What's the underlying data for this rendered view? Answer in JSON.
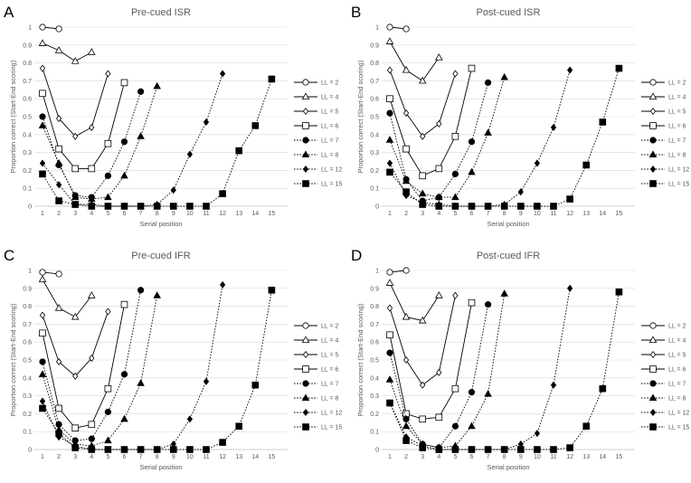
{
  "chart_data": [
    {
      "type": "line",
      "panel": "A",
      "title": "Pre-cued ISR",
      "xlabel": "Serial position",
      "ylabel": "Proportion correct (Start-End scoring)",
      "xticks": [
        "1",
        "2",
        "3",
        "4",
        "5",
        "6",
        "7",
        "8",
        "9",
        "10",
        "11",
        "12",
        "13",
        "14",
        "15"
      ],
      "yticks": [
        "0",
        "0.1",
        "0.2",
        "0.3",
        "0.4",
        "0.5",
        "0.6",
        "0.7",
        "0.8",
        "0.9",
        "1"
      ],
      "ylim": [
        0,
        1
      ],
      "series": [
        {
          "name": "LL = 2",
          "values": [
            1.0,
            0.99
          ]
        },
        {
          "name": "LL = 4",
          "values": [
            0.91,
            0.87,
            0.81,
            0.86
          ]
        },
        {
          "name": "LL = 5",
          "values": [
            0.77,
            0.49,
            0.39,
            0.44,
            0.74
          ]
        },
        {
          "name": "LL = 6",
          "values": [
            0.63,
            0.32,
            0.21,
            0.21,
            0.35,
            0.69
          ]
        },
        {
          "name": "LL = 7",
          "values": [
            0.5,
            0.23,
            0.06,
            0.05,
            0.17,
            0.36,
            0.64
          ]
        },
        {
          "name": "LL = 8",
          "values": [
            0.45,
            0.24,
            0.05,
            0.04,
            0.05,
            0.17,
            0.39,
            0.67
          ]
        },
        {
          "name": "LL = 12",
          "values": [
            0.24,
            0.12,
            0.01,
            0.01,
            0.0,
            0.0,
            0.0,
            0.01,
            0.09,
            0.29,
            0.47,
            0.74
          ]
        },
        {
          "name": "LL = 15",
          "values": [
            0.18,
            0.03,
            0.01,
            0.0,
            0.0,
            0.0,
            0.0,
            0.0,
            0.0,
            0.0,
            0.0,
            0.07,
            0.31,
            0.45,
            0.71
          ]
        }
      ]
    },
    {
      "type": "line",
      "panel": "B",
      "title": "Post-cued ISR",
      "xlabel": "Serial position",
      "ylabel": "Proportion correct (Start-End scoring)",
      "xticks": [
        "1",
        "2",
        "3",
        "4",
        "5",
        "6",
        "7",
        "8",
        "9",
        "10",
        "11",
        "12",
        "13",
        "14",
        "15"
      ],
      "yticks": [
        "0",
        "0.1",
        "0.2",
        "0.3",
        "0.4",
        "0.5",
        "0.6",
        "0.7",
        "0.8",
        "0.9",
        "1"
      ],
      "ylim": [
        0,
        1
      ],
      "series": [
        {
          "name": "LL = 2",
          "values": [
            1.0,
            0.99
          ]
        },
        {
          "name": "LL = 4",
          "values": [
            0.92,
            0.76,
            0.7,
            0.83
          ]
        },
        {
          "name": "LL = 5",
          "values": [
            0.76,
            0.52,
            0.39,
            0.46,
            0.74
          ]
        },
        {
          "name": "LL = 6",
          "values": [
            0.6,
            0.32,
            0.17,
            0.21,
            0.39,
            0.77
          ]
        },
        {
          "name": "LL = 7",
          "values": [
            0.52,
            0.15,
            0.03,
            0.05,
            0.18,
            0.36,
            0.69
          ]
        },
        {
          "name": "LL = 8",
          "values": [
            0.37,
            0.14,
            0.07,
            0.05,
            0.05,
            0.19,
            0.41,
            0.72
          ]
        },
        {
          "name": "LL = 12",
          "values": [
            0.24,
            0.06,
            0.02,
            0.01,
            0.0,
            0.0,
            0.0,
            0.01,
            0.08,
            0.24,
            0.44,
            0.76
          ]
        },
        {
          "name": "LL = 15",
          "values": [
            0.19,
            0.08,
            0.01,
            0.0,
            0.0,
            0.0,
            0.0,
            0.0,
            0.0,
            0.0,
            0.0,
            0.04,
            0.23,
            0.47,
            0.77
          ]
        }
      ]
    },
    {
      "type": "line",
      "panel": "C",
      "title": "Pre-cued IFR",
      "xlabel": "Serial position",
      "ylabel": "Proportion correct (Start-End scoring)",
      "xticks": [
        "1",
        "2",
        "3",
        "4",
        "5",
        "6",
        "7",
        "8",
        "9",
        "10",
        "11",
        "12",
        "13",
        "14",
        "15"
      ],
      "yticks": [
        "0",
        "0.1",
        "0.2",
        "0.3",
        "0.4",
        "0.5",
        "0.6",
        "0.7",
        "0.8",
        "0.9",
        "1"
      ],
      "ylim": [
        0,
        1
      ],
      "series": [
        {
          "name": "LL = 2",
          "values": [
            0.99,
            0.98
          ]
        },
        {
          "name": "LL = 4",
          "values": [
            0.95,
            0.79,
            0.74,
            0.86
          ]
        },
        {
          "name": "LL = 5",
          "values": [
            0.75,
            0.49,
            0.41,
            0.51,
            0.77
          ]
        },
        {
          "name": "LL = 6",
          "values": [
            0.65,
            0.23,
            0.12,
            0.14,
            0.34,
            0.81
          ]
        },
        {
          "name": "LL = 7",
          "values": [
            0.49,
            0.14,
            0.05,
            0.06,
            0.21,
            0.42,
            0.89
          ]
        },
        {
          "name": "LL = 8",
          "values": [
            0.42,
            0.11,
            0.03,
            0.02,
            0.05,
            0.17,
            0.37,
            0.86
          ]
        },
        {
          "name": "LL = 12",
          "values": [
            0.27,
            0.07,
            0.02,
            0.0,
            0.0,
            0.0,
            0.0,
            0.0,
            0.03,
            0.17,
            0.38,
            0.92
          ]
        },
        {
          "name": "LL = 15",
          "values": [
            0.23,
            0.09,
            0.01,
            0.0,
            0.0,
            0.0,
            0.0,
            0.0,
            0.0,
            0.0,
            0.0,
            0.04,
            0.13,
            0.36,
            0.89
          ]
        }
      ]
    },
    {
      "type": "line",
      "panel": "D",
      "title": "Post-cued IFR",
      "xlabel": "Serial position",
      "ylabel": "Proportion correct (Start-End scoring)",
      "xticks": [
        "1",
        "2",
        "3",
        "4",
        "5",
        "6",
        "7",
        "8",
        "9",
        "10",
        "11",
        "12",
        "13",
        "14",
        "15"
      ],
      "yticks": [
        "0",
        "0.1",
        "0.2",
        "0.3",
        "0.4",
        "0.5",
        "0.6",
        "0.7",
        "0.8",
        "0.9",
        "1"
      ],
      "ylim": [
        0,
        1
      ],
      "series": [
        {
          "name": "LL = 2",
          "values": [
            0.99,
            1.0
          ]
        },
        {
          "name": "LL = 4",
          "values": [
            0.93,
            0.74,
            0.72,
            0.86
          ]
        },
        {
          "name": "LL = 5",
          "values": [
            0.79,
            0.5,
            0.36,
            0.43,
            0.86
          ]
        },
        {
          "name": "LL = 6",
          "values": [
            0.64,
            0.2,
            0.17,
            0.18,
            0.34,
            0.82
          ]
        },
        {
          "name": "LL = 7",
          "values": [
            0.54,
            0.17,
            0.03,
            0.01,
            0.13,
            0.32,
            0.81
          ]
        },
        {
          "name": "LL = 8",
          "values": [
            0.39,
            0.13,
            0.03,
            0.01,
            0.02,
            0.13,
            0.31,
            0.87
          ]
        },
        {
          "name": "LL = 12",
          "values": [
            0.26,
            0.07,
            0.02,
            0.0,
            0.0,
            0.0,
            0.0,
            0.0,
            0.03,
            0.09,
            0.36,
            0.9
          ]
        },
        {
          "name": "LL = 15",
          "values": [
            0.26,
            0.05,
            0.01,
            0.0,
            0.0,
            0.0,
            0.0,
            0.0,
            0.0,
            0.0,
            0.0,
            0.01,
            0.13,
            0.34,
            0.88
          ]
        }
      ]
    }
  ]
}
